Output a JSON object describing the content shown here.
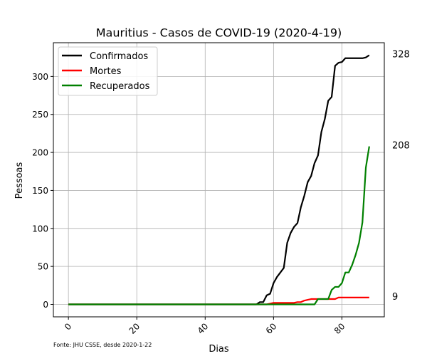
{
  "chart_data": {
    "type": "line",
    "title": "Mauritius - Casos de COVID-19 (2020-4-19)",
    "xlabel": "Dias",
    "ylabel": "Pessoas",
    "xlim": [
      -4.4,
      92.4
    ],
    "ylim": [
      -16.4,
      344.4
    ],
    "x_ticks": [
      0,
      20,
      40,
      60,
      80
    ],
    "y_ticks": [
      0,
      50,
      100,
      150,
      200,
      250,
      300
    ],
    "grid": true,
    "legend_position": "top-left",
    "source_note": "Fonte: JHU CSSE, desde 2020-1-22",
    "series": [
      {
        "name": "Confirmados",
        "color": "#000000",
        "end_label": "328",
        "x": [
          0,
          55,
          56,
          57,
          58,
          59,
          60,
          61,
          62,
          63,
          64,
          65,
          66,
          67,
          68,
          69,
          70,
          71,
          72,
          73,
          74,
          75,
          76,
          77,
          78,
          79,
          80,
          81,
          82,
          83,
          84,
          85,
          86,
          87,
          88
        ],
        "y": [
          0,
          0,
          3,
          3,
          12,
          14,
          28,
          36,
          42,
          48,
          81,
          94,
          102,
          107,
          128,
          143,
          161,
          169,
          186,
          196,
          227,
          244,
          268,
          273,
          314,
          318,
          319,
          324,
          324,
          324,
          324,
          324,
          324,
          325,
          328
        ]
      },
      {
        "name": "Mortes",
        "color": "#ff0000",
        "end_label": "9",
        "x": [
          0,
          58,
          59,
          60,
          66,
          67,
          68,
          69,
          70,
          71,
          72,
          73,
          74,
          75,
          76,
          77,
          78,
          79,
          80,
          88
        ],
        "y": [
          0,
          0,
          1,
          2,
          2,
          3,
          3,
          5,
          6,
          7,
          7,
          7,
          7,
          7,
          7,
          7,
          7,
          9,
          9,
          9
        ]
      },
      {
        "name": "Recuperados",
        "color": "#008000",
        "end_label": "208",
        "x": [
          0,
          72,
          73,
          74,
          75,
          76,
          77,
          78,
          79,
          80,
          81,
          82,
          83,
          84,
          85,
          86,
          87,
          88
        ],
        "y": [
          0,
          0,
          7,
          7,
          7,
          7,
          19,
          23,
          23,
          28,
          42,
          42,
          52,
          65,
          81,
          108,
          180,
          208
        ]
      }
    ]
  }
}
